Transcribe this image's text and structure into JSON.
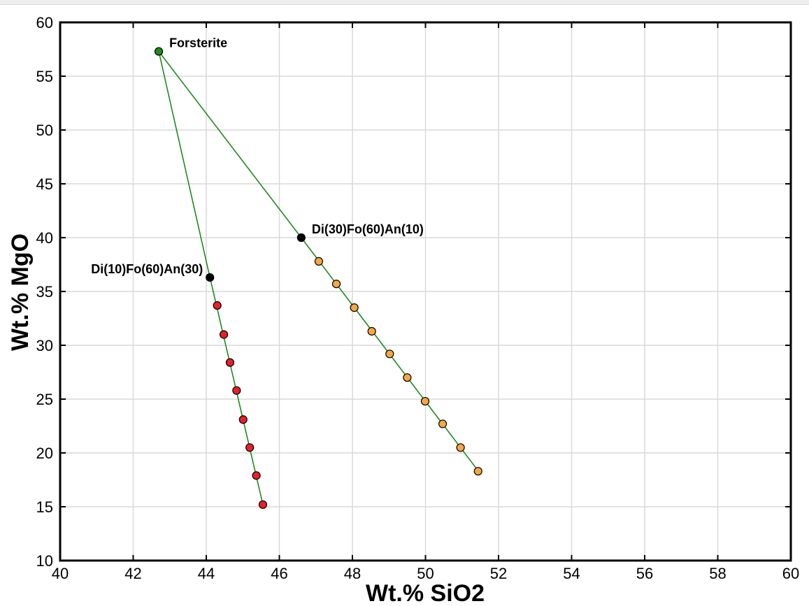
{
  "chart_data": {
    "type": "scatter",
    "xlabel": "Wt.% SiO2",
    "ylabel": "Wt.% MgO",
    "xlim": [
      40,
      60
    ],
    "ylim": [
      10,
      60
    ],
    "x_ticks": [
      40,
      42,
      44,
      46,
      48,
      50,
      52,
      54,
      56,
      58,
      60
    ],
    "y_ticks": [
      10,
      15,
      20,
      25,
      30,
      35,
      40,
      45,
      50,
      55,
      60
    ],
    "grid": true,
    "line_color": "#1f8a1f",
    "lines": [
      {
        "points": [
          [
            42.7,
            57.3
          ],
          [
            44.1,
            36.3
          ],
          [
            45.55,
            15.2
          ]
        ]
      },
      {
        "points": [
          [
            42.7,
            57.3
          ],
          [
            46.6,
            40.0
          ],
          [
            51.45,
            18.3
          ]
        ]
      }
    ],
    "series": [
      {
        "color": "#e8202a",
        "points": [
          [
            44.3,
            33.7
          ],
          [
            44.48,
            31.0
          ],
          [
            44.65,
            28.4
          ],
          [
            44.83,
            25.8
          ],
          [
            45.01,
            23.1
          ],
          [
            45.19,
            20.5
          ],
          [
            45.37,
            17.9
          ],
          [
            45.55,
            15.2
          ]
        ]
      },
      {
        "color": "#f5a742",
        "points": [
          [
            47.08,
            37.8
          ],
          [
            47.56,
            35.7
          ],
          [
            48.05,
            33.5
          ],
          [
            48.53,
            31.3
          ],
          [
            49.02,
            29.2
          ],
          [
            49.5,
            27.0
          ],
          [
            49.99,
            24.8
          ],
          [
            50.47,
            22.7
          ],
          [
            50.96,
            20.5
          ],
          [
            51.44,
            18.3
          ]
        ]
      },
      {
        "color": "#1f8a1f",
        "points": [
          [
            42.7,
            57.3
          ]
        ]
      },
      {
        "color": "#000000",
        "points": [
          [
            44.1,
            36.3
          ],
          [
            46.6,
            40.0
          ]
        ]
      }
    ],
    "annotations": [
      {
        "text": "Forsterite",
        "x": 42.7,
        "y": 57.3,
        "anchor": "right"
      },
      {
        "text": "Di(30)Fo(60)An(10)",
        "x": 46.6,
        "y": 40.0,
        "anchor": "right"
      },
      {
        "text": "Di(10)Fo(60)An(30)",
        "x": 44.1,
        "y": 36.3,
        "anchor": "left"
      }
    ]
  }
}
